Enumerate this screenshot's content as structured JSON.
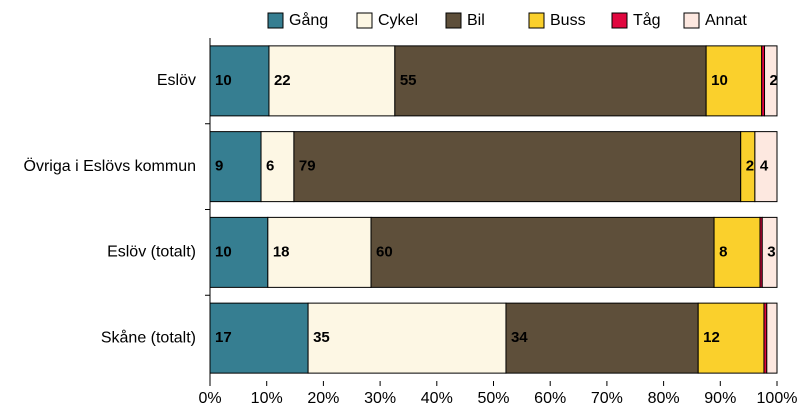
{
  "chart_data": {
    "type": "stacked-bar",
    "orientation": "horizontal",
    "categories": [
      "Eslöv",
      "Övriga i Eslövs kommun",
      "Eslöv (totalt)",
      "Skåne (totalt)"
    ],
    "series": [
      {
        "name": "Gång",
        "color": "#367e91",
        "values": [
          10.4,
          9.0,
          10.2,
          17.3
        ],
        "value_labels": [
          "10",
          "9",
          "10",
          "17"
        ]
      },
      {
        "name": "Cykel",
        "color": "#fdf7e4",
        "values": [
          22.2,
          5.8,
          18.2,
          34.9
        ],
        "value_labels": [
          "22",
          "6",
          "18",
          "35"
        ]
      },
      {
        "name": "Bil",
        "color": "#5e4f3a",
        "values": [
          54.9,
          78.8,
          60.5,
          33.9
        ],
        "value_labels": [
          "55",
          "79",
          "60",
          "34"
        ]
      },
      {
        "name": "Buss",
        "color": "#fad02c",
        "values": [
          9.8,
          2.5,
          8.1,
          11.6
        ],
        "value_labels": [
          "10",
          "2",
          "8",
          "12"
        ]
      },
      {
        "name": "Tåg",
        "color": "#e0073f",
        "values": [
          0.5,
          0,
          0.4,
          0.5
        ]
      },
      {
        "name": "Annat",
        "color": "#fde8e0",
        "values": [
          2.2,
          3.9,
          2.6,
          1.8
        ],
        "value_labels": [
          "2",
          "4",
          "3",
          null
        ]
      }
    ],
    "xlim": [
      0,
      100
    ],
    "xticks": [
      {
        "value": 0,
        "label": "0%"
      },
      {
        "value": 10,
        "label": "10%"
      },
      {
        "value": 20,
        "label": "20%"
      },
      {
        "value": 30,
        "label": "30%"
      },
      {
        "value": 40,
        "label": "40%"
      },
      {
        "value": 50,
        "label": "50%"
      },
      {
        "value": 60,
        "label": "60%"
      },
      {
        "value": 70,
        "label": "70%"
      },
      {
        "value": 80,
        "label": "80%"
      },
      {
        "value": 90,
        "label": "90%"
      },
      {
        "value": 100,
        "label": "100%"
      }
    ],
    "legend": "top"
  }
}
